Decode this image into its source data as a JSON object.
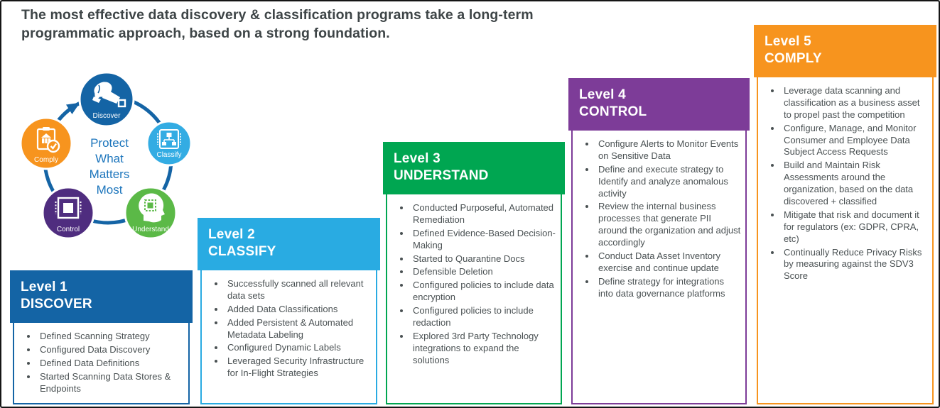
{
  "page": {
    "title_line1": "The most effective data discovery & classification programs take a long-term",
    "title_line2": "programmatic approach, based on a strong foundation."
  },
  "colors": {
    "title_text": "#3e4547",
    "body_text": "#4a5153",
    "ring_blue": "#1464a5",
    "center_text_blue": "#1c75bc",
    "dark_blue": "#1464a5",
    "light_blue": "#29abe2",
    "green": "#00a651",
    "purple": "#7d3c98",
    "orange": "#f7941e"
  },
  "cycle": {
    "center_lines": [
      "Protect",
      "What",
      "Matters",
      "Most"
    ],
    "nodes": [
      {
        "label": "Discover",
        "icon": "dog-sniffing-icon",
        "color": "#1464a5"
      },
      {
        "label": "Classify",
        "icon": "chip-hierarchy-icon",
        "color": "#33ace3"
      },
      {
        "label": "Understand",
        "icon": "head-chip-icon",
        "color": "#5bb947"
      },
      {
        "label": "Control",
        "icon": "chip-icon",
        "color": "#4f2d7f"
      },
      {
        "label": "Comply",
        "icon": "clipboard-check-icon",
        "color": "#f7941e"
      }
    ]
  },
  "levels": [
    {
      "level": "Level 1",
      "name": "DISCOVER",
      "color": "#1464a5",
      "items": [
        "Defined Scanning Strategy",
        "Configured Data Discovery",
        "Defined Data Definitions",
        "Started Scanning Data Stores & Endpoints"
      ]
    },
    {
      "level": "Level 2",
      "name": "CLASSIFY",
      "color": "#29abe2",
      "items": [
        "Successfully scanned all relevant data sets",
        "Added Data Classifications",
        "Added Persistent & Automated Metadata Labeling",
        "Configured Dynamic Labels",
        "Leveraged Security Infrastructure for In-Flight Strategies"
      ]
    },
    {
      "level": "Level 3",
      "name": "UNDERSTAND",
      "color": "#00a651",
      "items": [
        "Conducted Purposeful, Automated Remediation",
        "Defined Evidence-Based Decision-Making",
        "Started to Quarantine Docs",
        "Defensible Deletion",
        "Configured policies to include data encryption",
        "Configured policies to include redaction",
        "Explored 3rd Party Technology integrations to expand the solutions"
      ]
    },
    {
      "level": "Level 4",
      "name": "CONTROL",
      "color": "#7d3c98",
      "items": [
        "Configure Alerts to Monitor Events on Sensitive Data",
        "Define and execute strategy to Identify and analyze anomalous activity",
        "Review the internal business processes that generate PII around the organization and adjust accordingly",
        "Conduct Data Asset Inventory exercise and continue update",
        "Define strategy for integrations into data governance platforms"
      ]
    },
    {
      "level": "Level 5",
      "name": "COMPLY",
      "color": "#f7941e",
      "items": [
        "Leverage data scanning and classification as a business asset to propel past the competition",
        "Configure, Manage, and Monitor Consumer and Employee Data Subject Access Requests",
        "Build and Maintain Risk Assessments around the organization, based on the data discovered + classified",
        "Mitigate that risk and document it for regulators (ex: GDPR, CPRA, etc)",
        "Continually Reduce Privacy Risks by measuring against the SDV3 Score"
      ]
    }
  ]
}
